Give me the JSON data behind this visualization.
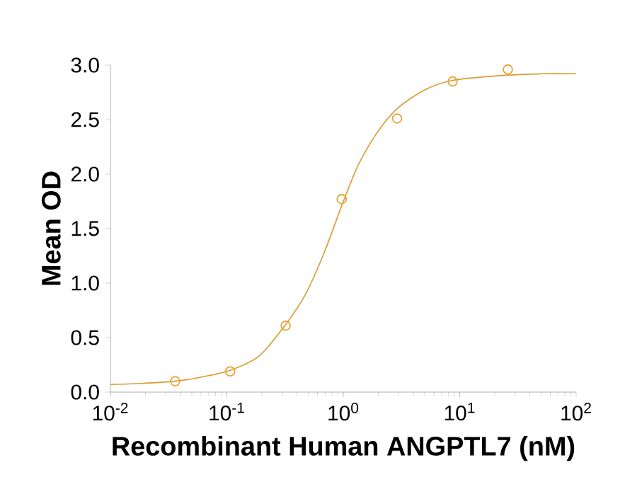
{
  "chart_data": {
    "type": "scatter",
    "xlabel": "**Recombinant Human ANGPTL7 (nM)**",
    "ylabel": "**Mean OD**",
    "log": "x",
    "marker": "circle",
    "xlim": [
      0.01,
      100
    ],
    "ylim": [
      0,
      3.0
    ],
    "xticks": [
      {
        "value": 0.01,
        "label": "10$^{-2}$"
      },
      {
        "value": 0.1,
        "label": "10$^{-1}$"
      },
      {
        "value": 1,
        "label": "10$^{0}$"
      },
      {
        "value": 10,
        "label": "10$^{1}$"
      },
      {
        "value": 100,
        "label": "10$^{2}$"
      }
    ],
    "yticks": [
      {
        "value": 0,
        "label": "0.0"
      },
      {
        "value": 0.5,
        "label": "0.5"
      },
      {
        "value": 1,
        "label": "1.0"
      },
      {
        "value": 1.5,
        "label": "1.5"
      },
      {
        "value": 2,
        "label": "2.0"
      },
      {
        "value": 2.5,
        "label": "2.5"
      },
      {
        "value": 3,
        "label": "3.0"
      }
    ],
    "series": [
      {
        "color": "#e8a235",
        "x": [
          0.036,
          0.107,
          0.32,
          0.97,
          2.9,
          8.7,
          25.9
        ],
        "values": [
          0.1,
          0.19,
          0.61,
          1.77,
          2.51,
          2.85,
          2.96
        ]
      },
      {
        "type": "line",
        "color": "#dc9a30",
        "marker": "none",
        "x": [
          0.01,
          0.0183,
          0.036,
          0.0617,
          0.107,
          0.189,
          0.32,
          0.481,
          0.698,
          0.97,
          1.34,
          1.95,
          2.9,
          4.95,
          8.7,
          20.1,
          51,
          100
        ],
        "values": [
          0.07,
          0.08,
          0.1,
          0.14,
          0.2,
          0.33,
          0.62,
          0.91,
          1.3,
          1.71,
          2.08,
          2.38,
          2.6,
          2.77,
          2.86,
          2.9,
          2.92,
          2.92
        ]
      }
    ]
  }
}
